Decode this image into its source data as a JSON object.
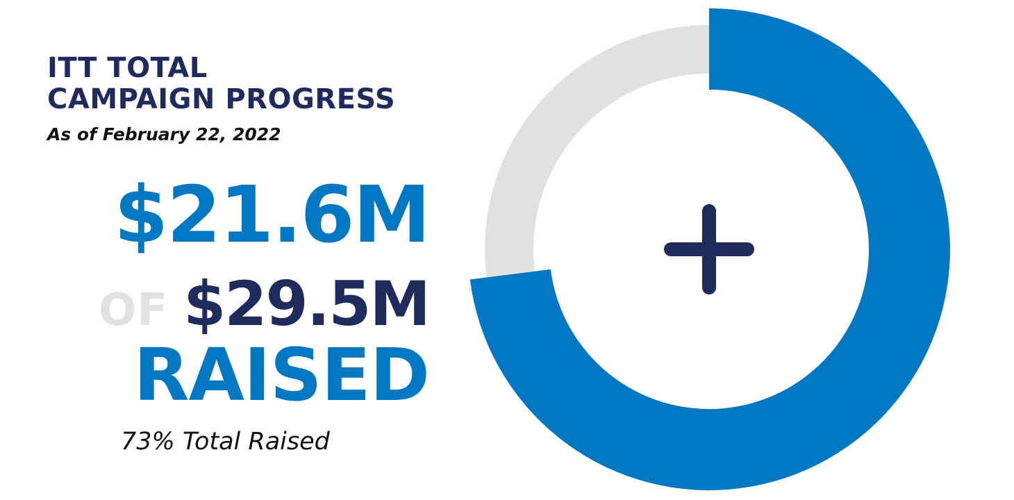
{
  "header": {
    "title_line1": "ITT TOTAL",
    "title_line2": "CAMPAIGN PROGRESS",
    "subtitle": "As of February 22, 2022"
  },
  "stats": {
    "raised_amount": "$21.6M",
    "of_label": "OF",
    "goal_amount": "$29.5M",
    "raised_word": "RAISED",
    "percent_label": "73% Total Raised"
  },
  "chart_data": {
    "type": "pie",
    "style": "donut",
    "percent_raised": 73,
    "slices": [
      {
        "value": 21.6
      },
      {
        "value": 7.9
      }
    ],
    "center_icon": "plus-icon"
  },
  "colors": {
    "navy": "#1f2a5d",
    "blue": "#0077c0",
    "light_gray": "#dfe1e3",
    "black": "#111111"
  }
}
